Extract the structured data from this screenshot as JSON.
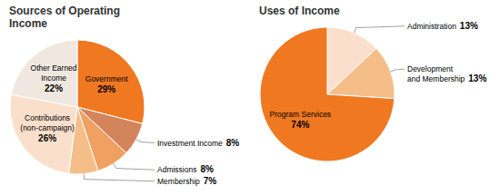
{
  "chart_data": [
    {
      "type": "pie",
      "title": "Sources of Operating\nIncome",
      "categories": [
        "Government",
        "Investment Income",
        "Admissions",
        "Membership",
        "Contributions\n(non-campaign)",
        "Other Earned\nIncome"
      ],
      "values": [
        29,
        8,
        8,
        7,
        26,
        22
      ],
      "value_labels": [
        "29%",
        "8%",
        "8%",
        "7%",
        "26%",
        "22%"
      ],
      "colors": [
        "#F07820",
        "#D4845A",
        "#F0A060",
        "#F5BE88",
        "#FAE0CC",
        "#F0E8E0"
      ],
      "data_labels": true
    },
    {
      "type": "pie",
      "title": "Uses of Income",
      "categories": [
        "Administration",
        "Development\nand Membership",
        "Program Services"
      ],
      "values": [
        13,
        13,
        74
      ],
      "value_labels": [
        "13%",
        "13%",
        "74%"
      ],
      "colors": [
        "#FAE0CC",
        "#F5BE88",
        "#F07820"
      ],
      "data_labels": true
    }
  ]
}
